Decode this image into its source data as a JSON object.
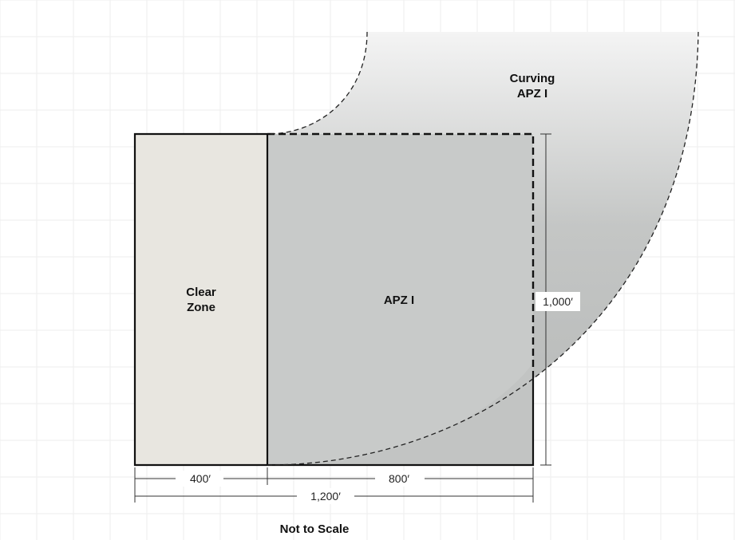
{
  "labels": {
    "clear_zone": [
      "Clear",
      "Zone"
    ],
    "apz": "APZ I",
    "curving_apz": [
      "Curving",
      "APZ I"
    ],
    "dim_left": "400′",
    "dim_mid": "800′",
    "dim_total": "1,200′",
    "dim_height": "1,000′",
    "note": "Not to Scale"
  },
  "colors": {
    "clear_zone_fill": "#e8e6e0",
    "apz_fill": "#c8cac9",
    "curve_fill_dark": "#b6b8b7",
    "curve_fill_light": "#f4f4f4",
    "grid": "#ededed",
    "line": "#111111"
  }
}
